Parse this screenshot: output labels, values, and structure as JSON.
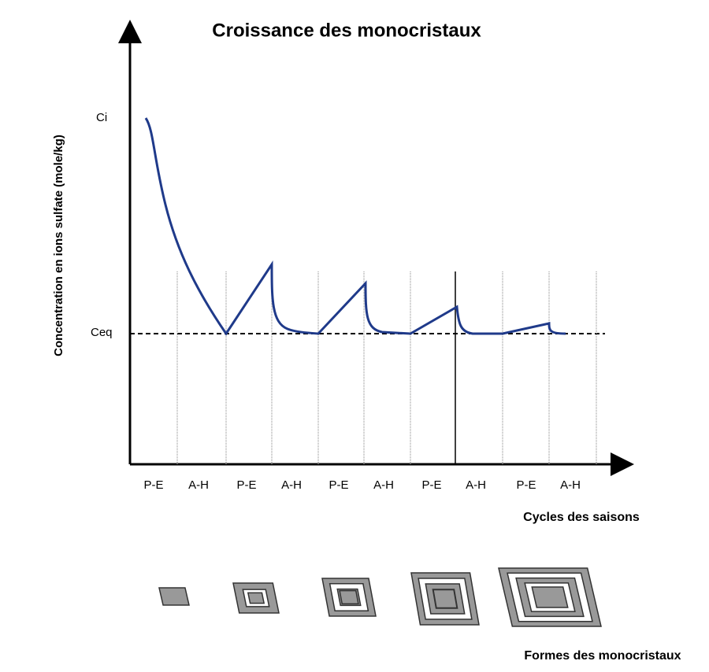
{
  "title": "Croissance des monocristaux",
  "y_axis_label": "Concentration en ions sulfate  (mole/kg)",
  "y_labels": [
    "Ci",
    "Ceq"
  ],
  "x_labels": [
    "P-E",
    "A-H",
    "P-E",
    "A-H",
    "P-E",
    "A-H",
    "P-E",
    "A-H",
    "P-E",
    "A-H"
  ],
  "x_axis_label": "Cycles des saisons",
  "shapes_label": "Formes des monocristaux"
}
